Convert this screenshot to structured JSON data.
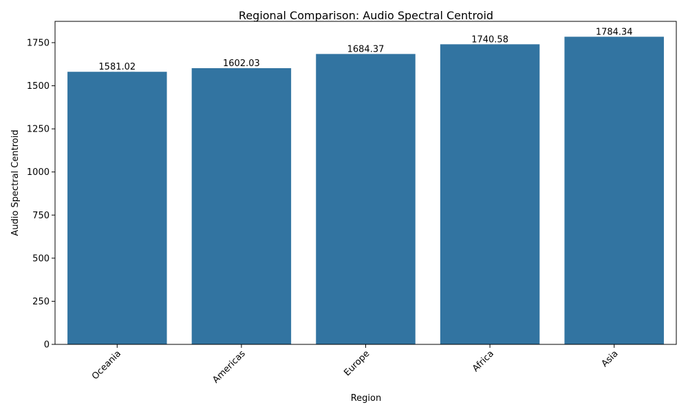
{
  "colors": {
    "bar": "#3274a1",
    "axis": "#000000",
    "background": "#ffffff"
  },
  "chart_data": {
    "type": "bar",
    "title": "Regional Comparison: Audio Spectral Centroid",
    "xlabel": "Region",
    "ylabel": "Audio Spectral Centroid",
    "categories": [
      "Oceania",
      "Americas",
      "Europe",
      "Africa",
      "Asia"
    ],
    "values": [
      1581.02,
      1602.03,
      1684.37,
      1740.58,
      1784.34
    ],
    "data_labels": [
      "1581.02",
      "1602.03",
      "1684.37",
      "1740.58",
      "1784.34"
    ],
    "ylim": [
      0,
      1873.6
    ],
    "yticks": [
      0,
      250,
      500,
      750,
      1000,
      1250,
      1500,
      1750
    ],
    "ytick_labels": [
      "0",
      "250",
      "500",
      "750",
      "1000",
      "1250",
      "1500",
      "1750"
    ],
    "xtick_rotation": "45 degrees",
    "grid": false,
    "legend": "none"
  }
}
